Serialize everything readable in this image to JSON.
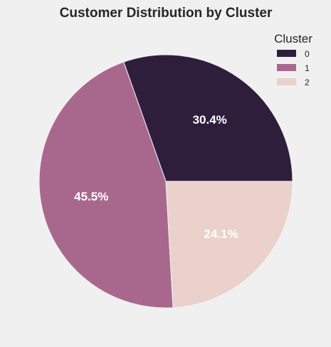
{
  "chart_data": {
    "type": "pie",
    "title": "Customer Distribution by Cluster",
    "categories": [
      "0",
      "1",
      "2"
    ],
    "values": [
      30.4,
      45.5,
      24.1
    ],
    "value_labels": [
      "30.4%",
      "45.5%",
      "24.1%"
    ],
    "colors": [
      "#2e1e3b",
      "#a8688e",
      "#ebd1cb"
    ],
    "start_angle_deg": 0,
    "direction": "counterclockwise",
    "legend": {
      "title": "Cluster",
      "placement": "top-right"
    }
  }
}
